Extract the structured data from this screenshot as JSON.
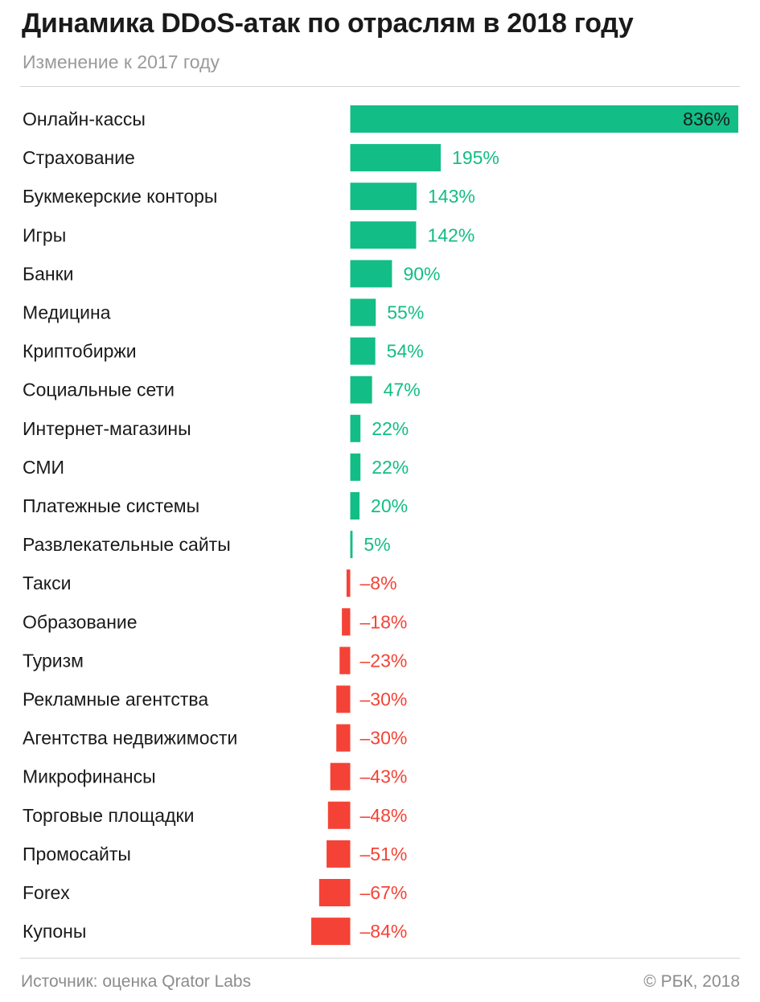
{
  "header": {
    "title": "Динамика DDoS-атак по отраслям в 2018 году",
    "subtitle": "Изменение к 2017 году"
  },
  "footer": {
    "source": "Источник: оценка Qrator Labs",
    "copyright": "© РБК, 2018"
  },
  "colors": {
    "positive": "#13bd86",
    "negative": "#f44336",
    "label_inside": "#1a1a1a"
  },
  "chart_data": {
    "type": "bar",
    "orientation": "horizontal",
    "unit": "%",
    "categories": [
      "Онлайн-кассы",
      "Страхование",
      "Букмекерские конторы",
      "Игры",
      "Банки",
      "Медицина",
      "Криптобиржи",
      "Социальные сети",
      "Интернет-магазины",
      "СМИ",
      "Платежные системы",
      "Развлекательные сайты",
      "Такси",
      "Образование",
      "Туризм",
      "Рекламные агентства",
      "Агентства недвижимости",
      "Микрофинансы",
      "Торговые площадки",
      "Промосайты",
      "Forex",
      "Купоны"
    ],
    "values": [
      836,
      195,
      143,
      142,
      90,
      55,
      54,
      47,
      22,
      22,
      20,
      5,
      -8,
      -18,
      -23,
      -30,
      -30,
      -43,
      -48,
      -51,
      -67,
      -84
    ],
    "labels": [
      "836%",
      "195%",
      "143%",
      "142%",
      "90%",
      "55%",
      "54%",
      "47%",
      "22%",
      "22%",
      "20%",
      "5%",
      "–8%",
      "–18%",
      "–23%",
      "–30%",
      "–30%",
      "–43%",
      "–48%",
      "–51%",
      "–67%",
      "–84%"
    ],
    "xlim": [
      -84,
      836
    ],
    "grid": false,
    "legend": "none"
  }
}
